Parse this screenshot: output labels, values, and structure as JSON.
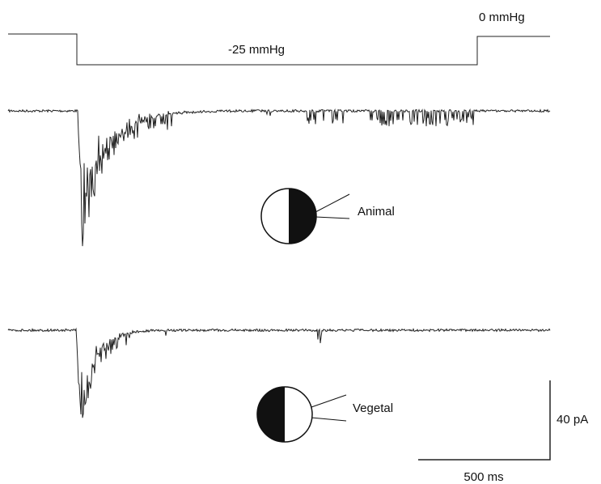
{
  "stimulus": {
    "baseline_label": "0 mmHg",
    "step_label": "-25 mmHg"
  },
  "recordings": [
    {
      "label": "Animal"
    },
    {
      "label": "Vegetal"
    }
  ],
  "scale_bar": {
    "current": "40 pA",
    "time": "500 ms"
  }
}
